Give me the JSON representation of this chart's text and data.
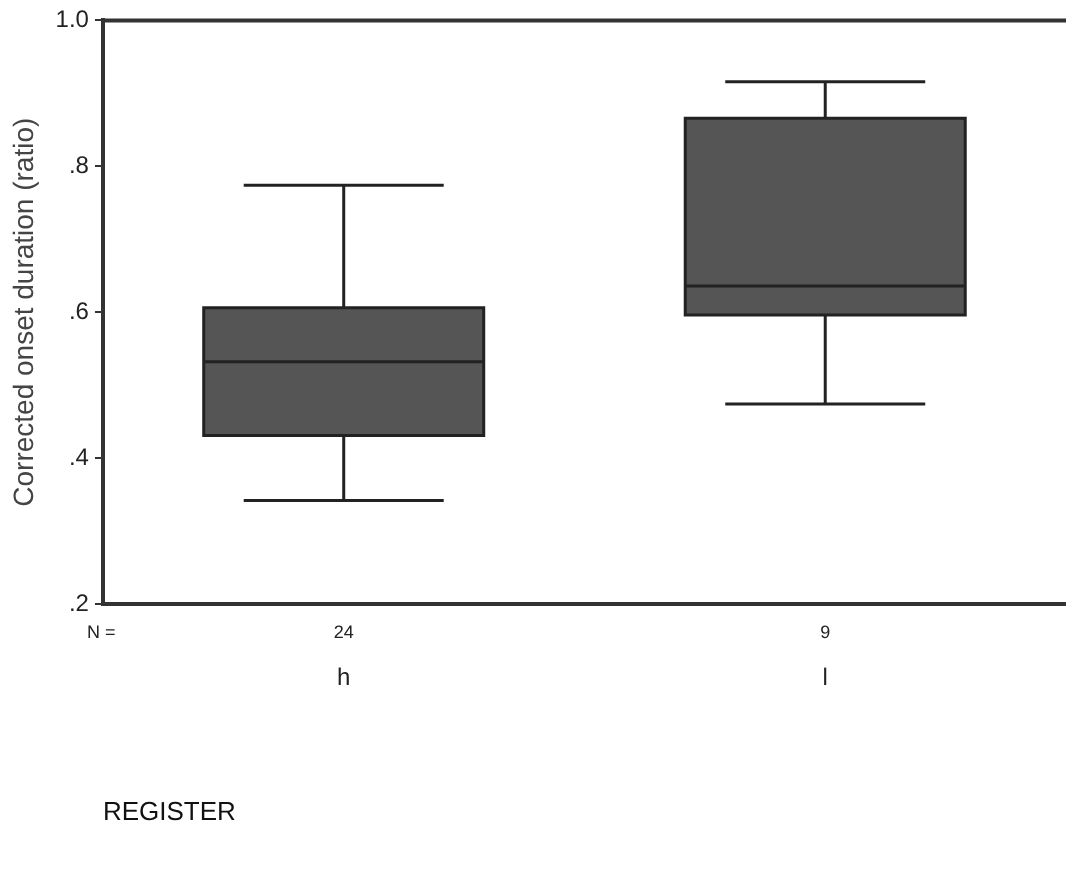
{
  "chart_data": {
    "type": "box",
    "ylabel": "Corrected onset duration (ratio)",
    "xlabel": "REGISTER",
    "categories": [
      "h",
      "l"
    ],
    "color": "#555555",
    "boxes": [
      {
        "low": 0.342,
        "q1": 0.431,
        "median": 0.532,
        "q3": 0.606,
        "high": 0.774
      },
      {
        "low": 0.474,
        "q1": 0.596,
        "median": 0.636,
        "q3": 0.866,
        "high": 0.916
      }
    ],
    "ylim": [
      0.2,
      1.0
    ],
    "yticks": [
      {
        "value": 0.2,
        "label": ".2"
      },
      {
        "value": 0.4,
        "label": ".4"
      },
      {
        "value": 0.6,
        "label": ".6"
      },
      {
        "value": 0.8,
        "label": ".8"
      },
      {
        "value": 1.0,
        "label": "1.0"
      }
    ],
    "annotations": [
      "N =",
      "24",
      "9"
    ],
    "grid": false,
    "legend": false
  }
}
